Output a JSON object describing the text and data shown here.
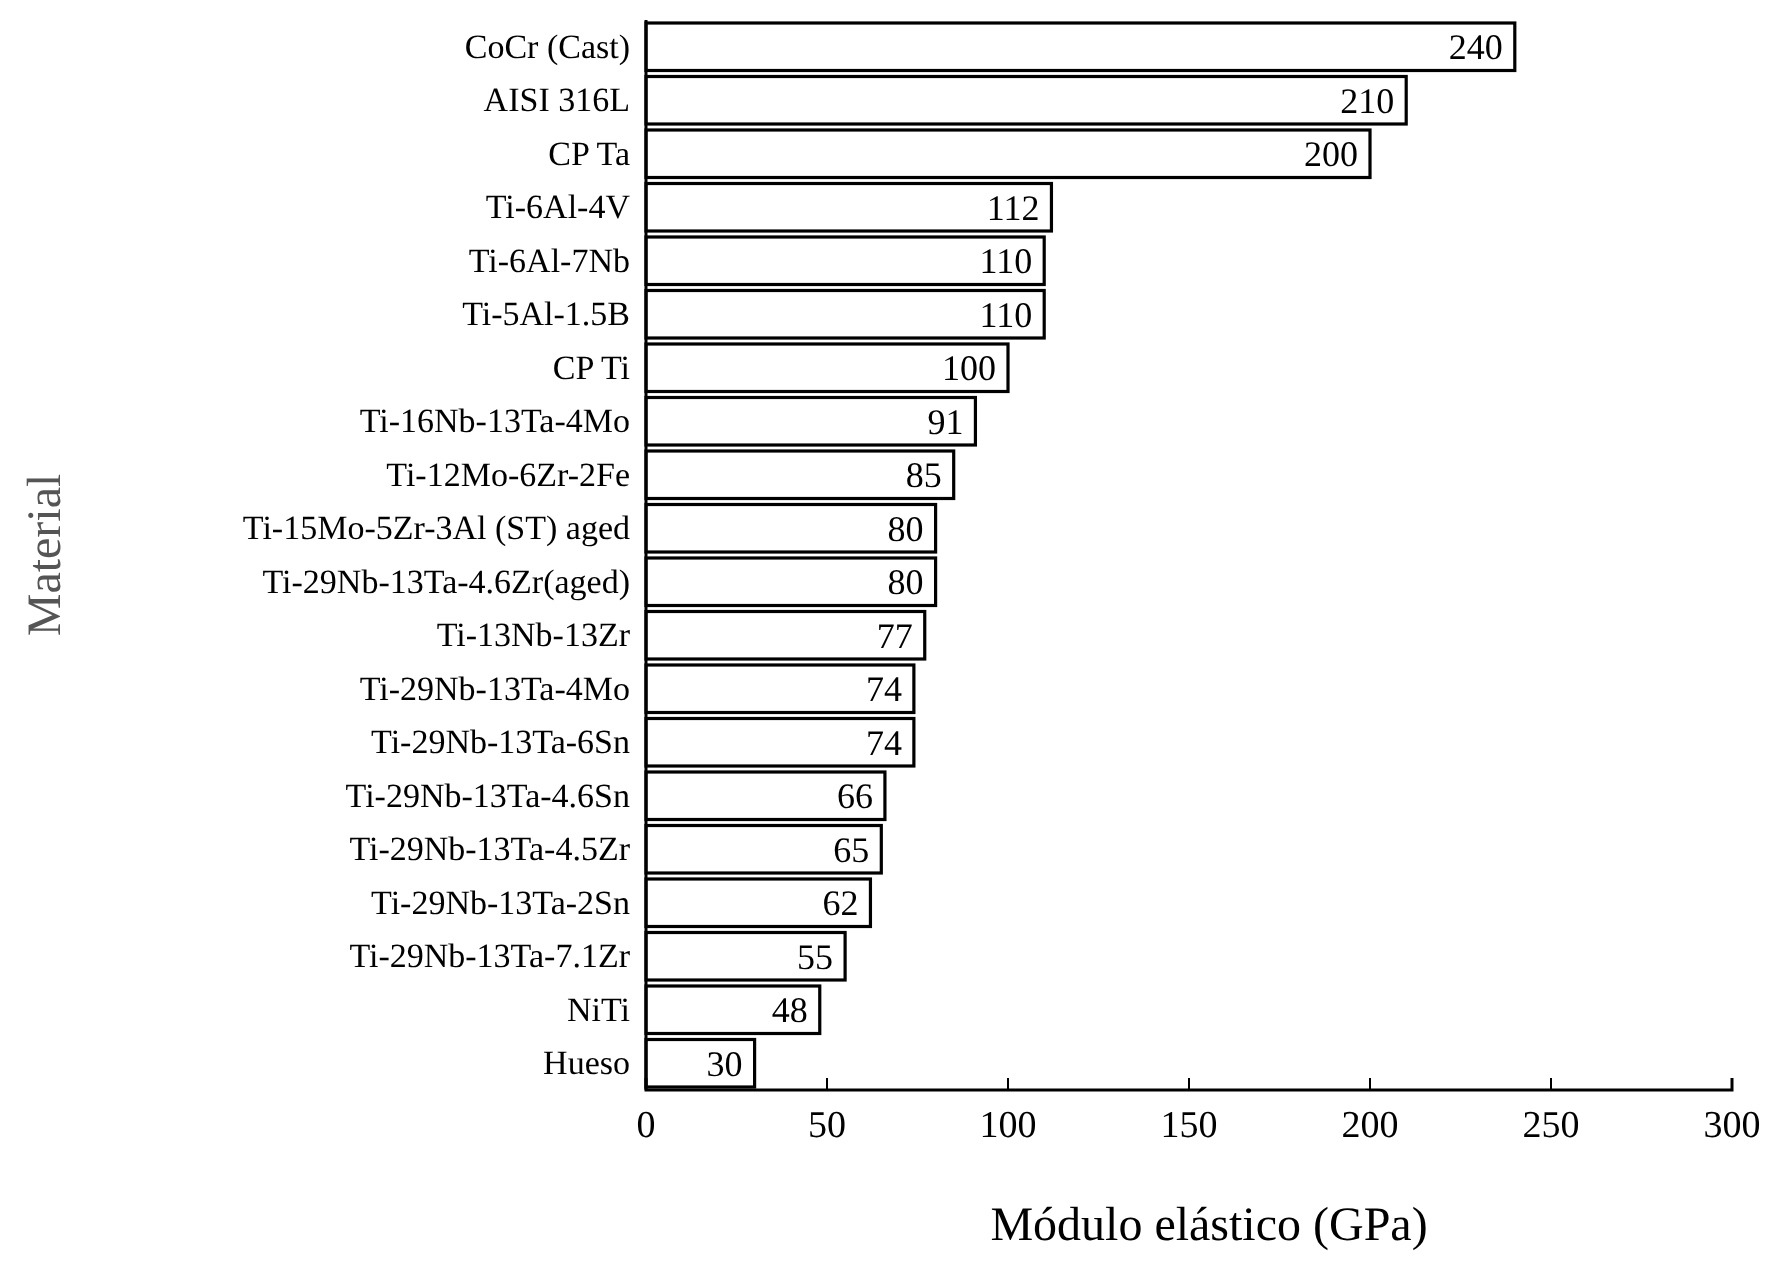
{
  "chart_data": {
    "type": "bar",
    "orientation": "horizontal",
    "xlabel": "Módulo elástico (GPa)",
    "ylabel": "Material",
    "categories": [
      "CoCr (Cast)",
      "AISI 316L",
      "CP Ta",
      "Ti-6Al-4V",
      "Ti-6Al-7Nb",
      "Ti-5Al-1.5B",
      "CP Ti",
      "Ti-16Nb-13Ta-4Mo",
      "Ti-12Mo-6Zr-2Fe",
      "Ti-15Mo-5Zr-3Al (ST) aged",
      "Ti-29Nb-13Ta-4.6Zr(aged)",
      "Ti-13Nb-13Zr",
      "Ti-29Nb-13Ta-4Mo",
      "Ti-29Nb-13Ta-6Sn",
      "Ti-29Nb-13Ta-4.6Sn",
      "Ti-29Nb-13Ta-4.5Zr",
      "Ti-29Nb-13Ta-2Sn",
      "Ti-29Nb-13Ta-7.1Zr",
      "NiTi",
      "Hueso"
    ],
    "values": [
      240,
      210,
      200,
      112,
      110,
      110,
      100,
      91,
      85,
      80,
      80,
      77,
      74,
      74,
      66,
      65,
      62,
      55,
      48,
      30
    ],
    "color": "#ffffff",
    "data_labels": true,
    "xlim": [
      0,
      300
    ],
    "xticks": [
      0,
      50,
      100,
      150,
      200,
      250,
      300
    ],
    "grid": false
  }
}
